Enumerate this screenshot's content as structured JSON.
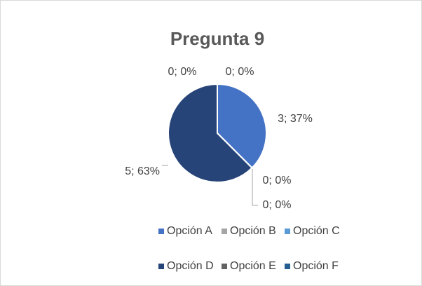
{
  "chart_data": {
    "type": "pie",
    "title": "Pregunta 9",
    "categories": [
      "Opción A",
      "Opción B",
      "Opción C",
      "Opción D",
      "Opción E",
      "Opción F"
    ],
    "values": [
      3,
      0,
      0,
      5,
      0,
      0
    ],
    "value_labels": [
      "3; 37%",
      "0; 0%",
      "0; 0%",
      "5; 63%",
      "0; 0%",
      "0; 0%"
    ],
    "colors": [
      "#4472c4",
      "#a5a5a5",
      "#5b9bd5",
      "#264478",
      "#636363",
      "#255e91"
    ],
    "legend": "bottom"
  }
}
